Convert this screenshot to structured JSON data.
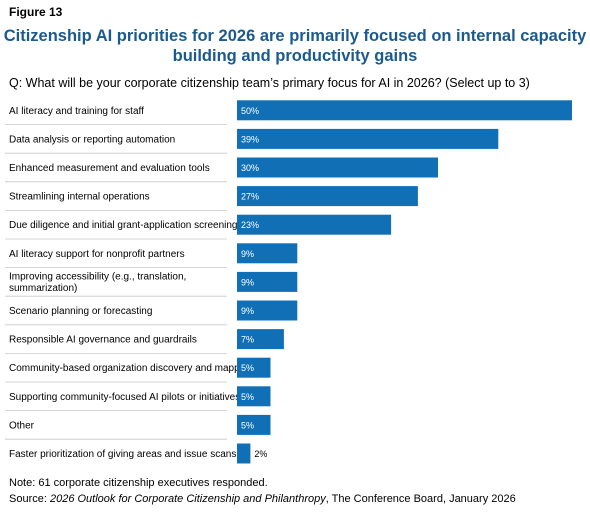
{
  "figure_label": "Figure 13",
  "title_line1": "Citizenship AI priorities for 2026 are primarily focused on internal capacity",
  "title_line2": "building and productivity gains",
  "question": "Q: What will be your corporate citizenship team’s primary focus for AI in 2026? (Select up to 3)",
  "note": "Note: 61 corporate citizenship executives responded.",
  "source": {
    "prefix": "Source: ",
    "publication": "2026 Outlook for Corporate Citizenship and Philanthropy",
    "suffix": ", The Conference Board, January 2026"
  },
  "colors": {
    "bar": "#1170b5",
    "title": "#1a5a8f",
    "separator": "#c8c8c8"
  },
  "chart_data": {
    "type": "bar",
    "orientation": "horizontal",
    "categories": [
      "AI literacy and training for staff",
      "Data analysis or reporting automation",
      "Enhanced measurement and evaluation tools",
      "Streamlining internal operations",
      "Due diligence and initial grant-application screening",
      "AI literacy support for nonprofit partners",
      "Improving accessibility (e.g., translation, summarization)",
      "Scenario planning or forecasting",
      "Responsible AI governance and guardrails",
      "Community-based organization discovery and mapping",
      "Supporting community-focused AI pilots or initiatives",
      "Other",
      "Faster prioritization of giving areas and issue scans"
    ],
    "category_lines": [
      [
        "AI literacy and training for staff"
      ],
      [
        "Data analysis or reporting automation"
      ],
      [
        "Enhanced measurement and evaluation tools"
      ],
      [
        "Streamlining internal operations"
      ],
      [
        "Due diligence and initial grant-application screening"
      ],
      [
        "AI literacy support for nonprofit partners"
      ],
      [
        "Improving accessibility (e.g., translation,",
        "summarization)"
      ],
      [
        "Scenario planning or forecasting"
      ],
      [
        "Responsible AI governance and guardrails"
      ],
      [
        "Community-based organization discovery and mapping"
      ],
      [
        "Supporting community-focused AI pilots or initiatives"
      ],
      [
        "Other"
      ],
      [
        "Faster prioritization of giving areas and issue scans"
      ]
    ],
    "values": [
      50,
      39,
      30,
      27,
      23,
      9,
      9,
      9,
      7,
      5,
      5,
      5,
      2
    ],
    "data_labels": [
      "50%",
      "39%",
      "30%",
      "27%",
      "23%",
      "9%",
      "9%",
      "9%",
      "7%",
      "5%",
      "5%",
      "5%",
      "2%"
    ],
    "unit": "%",
    "xlim": [
      0,
      50
    ],
    "grid": false,
    "legend": "none"
  }
}
